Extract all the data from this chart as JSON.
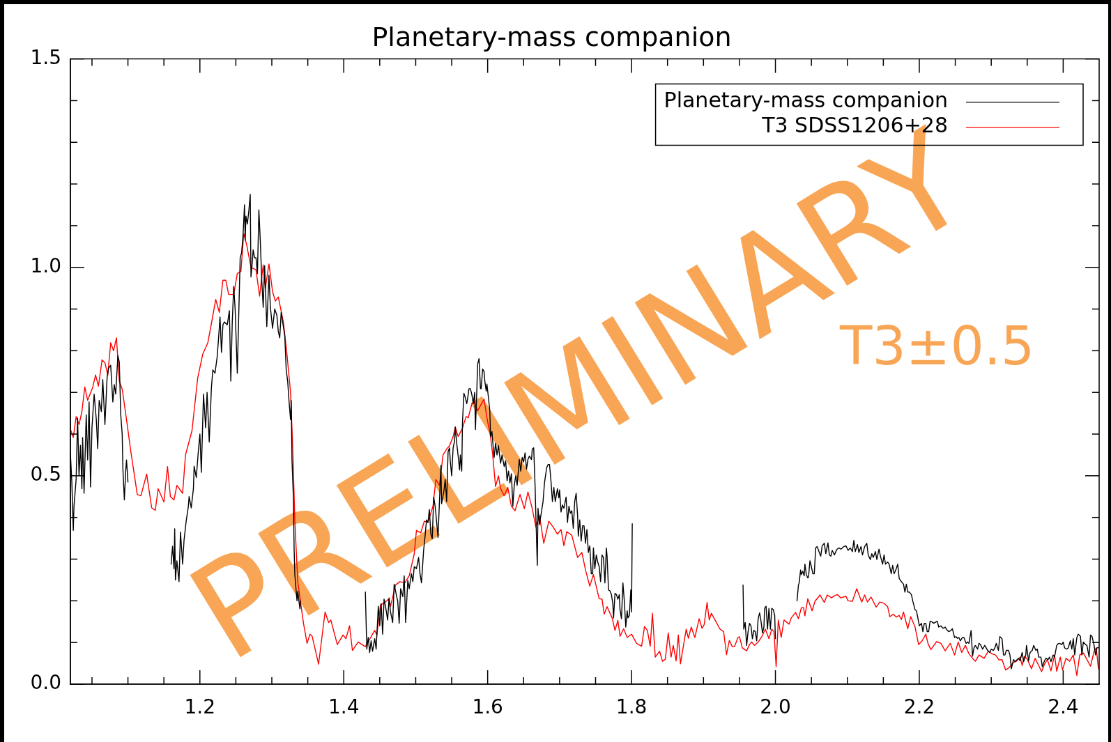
{
  "chart_data": {
    "type": "line",
    "title": "Planetary-mass companion",
    "xlim": [
      1.02,
      2.45
    ],
    "xticks": [
      {
        "value": 1.05,
        "label": null
      },
      {
        "value": 1.1,
        "label": null
      },
      {
        "value": 1.15,
        "label": null
      },
      1.2,
      {
        "value": 1.25,
        "label": null
      },
      {
        "value": 1.3,
        "label": null
      },
      {
        "value": 1.35,
        "label": null
      },
      1.4,
      {
        "value": 1.45,
        "label": null
      },
      {
        "value": 1.5,
        "label": null
      },
      {
        "value": 1.55,
        "label": null
      },
      1.6,
      {
        "value": 1.65,
        "label": null
      },
      {
        "value": 1.7,
        "label": null
      },
      {
        "value": 1.75,
        "label": null
      },
      1.8,
      {
        "value": 1.85,
        "label": null
      },
      {
        "value": 1.9,
        "label": null
      },
      {
        "value": 1.95,
        "label": null
      },
      {
        "value": 2.0,
        "label": "2.0"
      },
      {
        "value": 2.05,
        "label": null
      },
      {
        "value": 2.1,
        "label": null
      },
      {
        "value": 2.15,
        "label": null
      },
      2.2,
      {
        "value": 2.25,
        "label": null
      },
      {
        "value": 2.3,
        "label": null
      },
      {
        "value": 2.35,
        "label": null
      },
      2.4
    ],
    "ylim": [
      0,
      1.5
    ],
    "yticks": [
      {
        "value": 0,
        "label": "0.0"
      },
      {
        "value": 0.1,
        "label": null
      },
      {
        "value": 0.2,
        "label": null
      },
      {
        "value": 0.3,
        "label": null
      },
      {
        "value": 0.4,
        "label": null
      },
      0.5,
      {
        "value": 0.6,
        "label": null
      },
      {
        "value": 0.7,
        "label": null
      },
      {
        "value": 0.8,
        "label": null
      },
      {
        "value": 0.9,
        "label": null
      },
      {
        "value": 1,
        "label": "1.0"
      },
      {
        "value": 1.1,
        "label": null
      },
      {
        "value": 1.2,
        "label": null
      },
      {
        "value": 1.3,
        "label": null
      },
      {
        "value": 1.4,
        "label": null
      },
      1.5
    ],
    "legend": "top right",
    "annotations": [
      "PRELIMINARY",
      "T3±0.5"
    ],
    "series": [
      {
        "name": "Planetary-mass companion",
        "color": "#000000",
        "x": [
          1.02,
          1.022,
          1.024,
          1.025,
          1.028,
          1.03,
          1.032,
          1.034,
          1.036,
          1.037,
          1.039,
          1.042,
          1.044,
          1.046,
          1.048,
          1.05,
          1.053,
          1.056,
          1.058,
          1.06,
          1.063,
          1.065,
          1.068,
          1.071,
          1.073,
          1.076,
          1.079,
          1.081,
          1.083,
          1.086,
          1.088,
          1.09,
          1.092,
          1.093,
          1.095,
          1.097,
          1.098,
          1.1,
          1.13,
          1.16,
          1.162,
          1.164,
          1.165,
          1.166,
          1.168,
          1.171,
          1.173,
          1.176,
          1.178,
          1.181,
          1.184,
          1.185,
          1.188,
          1.191,
          1.192,
          1.195,
          1.198,
          1.2,
          1.202,
          1.205,
          1.208,
          1.21,
          1.213,
          1.216,
          1.218,
          1.221,
          1.224,
          1.226,
          1.228,
          1.23,
          1.232,
          1.234,
          1.238,
          1.241,
          1.243,
          1.245,
          1.247,
          1.249,
          1.252,
          1.254,
          1.256,
          1.258,
          1.26,
          1.262,
          1.263,
          1.264,
          1.266,
          1.268,
          1.27,
          1.271,
          1.273,
          1.274,
          1.276,
          1.278,
          1.28,
          1.282,
          1.284,
          1.286,
          1.288,
          1.29,
          1.293,
          1.296,
          1.298,
          1.301,
          1.304,
          1.307,
          1.309,
          1.311,
          1.313,
          1.316,
          1.318,
          1.32,
          1.322,
          1.324,
          1.326,
          1.327,
          1.328,
          1.33,
          1.331,
          1.332,
          1.335,
          1.336,
          1.339,
          1.34,
          1.385,
          1.43,
          1.432,
          1.434,
          1.436,
          1.438,
          1.44,
          1.443,
          1.445,
          1.448,
          1.45,
          1.452,
          1.454,
          1.456,
          1.458,
          1.461,
          1.463,
          1.465,
          1.468,
          1.47,
          1.473,
          1.475,
          1.477,
          1.479,
          1.482,
          1.484,
          1.486,
          1.489,
          1.491,
          1.494,
          1.496,
          1.498,
          1.501,
          1.504,
          1.506,
          1.508,
          1.511,
          1.513,
          1.515,
          1.517,
          1.519,
          1.521,
          1.523,
          1.525,
          1.527,
          1.528,
          1.531,
          1.533,
          1.535,
          1.536,
          1.539,
          1.541,
          1.543,
          1.545,
          1.547,
          1.548,
          1.55,
          1.552,
          1.554,
          1.555,
          1.557,
          1.559,
          1.561,
          1.562,
          1.564,
          1.565,
          1.567,
          1.569,
          1.571,
          1.573,
          1.574,
          1.576,
          1.578,
          1.58,
          1.582,
          1.583,
          1.585,
          1.586,
          1.588,
          1.59,
          1.591,
          1.593,
          1.595,
          1.596,
          1.598,
          1.599,
          1.601,
          1.603,
          1.604,
          1.606,
          1.607,
          1.609,
          1.611,
          1.613,
          1.615,
          1.618,
          1.62,
          1.623,
          1.625,
          1.627,
          1.629,
          1.631,
          1.633,
          1.635,
          1.637,
          1.639,
          1.641,
          1.644,
          1.646,
          1.648,
          1.65,
          1.652,
          1.654,
          1.656,
          1.658,
          1.661,
          1.662,
          1.664,
          1.666,
          1.667,
          1.669,
          1.67,
          1.672,
          1.675,
          1.677,
          1.679,
          1.682,
          1.684,
          1.686,
          1.688,
          1.69,
          1.692,
          1.694,
          1.697,
          1.699,
          1.7,
          1.702,
          1.704,
          1.706,
          1.709,
          1.711,
          1.713,
          1.715,
          1.717,
          1.719,
          1.721,
          1.723,
          1.725,
          1.726,
          1.728,
          1.73,
          1.732,
          1.734,
          1.736,
          1.738,
          1.74,
          1.742,
          1.744,
          1.746,
          1.747,
          1.749,
          1.751,
          1.753,
          1.755,
          1.757,
          1.759,
          1.761,
          1.763,
          1.765,
          1.766,
          1.768,
          1.77,
          1.772,
          1.774,
          1.775,
          1.777,
          1.779,
          1.781,
          1.783,
          1.784,
          1.786,
          1.788,
          1.79,
          1.792,
          1.794,
          1.795,
          1.797,
          1.799,
          1.8,
          1.801,
          1.88,
          1.955,
          1.956,
          1.958,
          1.96,
          1.962,
          1.964,
          1.966,
          1.968,
          1.97,
          1.972,
          1.974,
          1.976,
          1.978,
          1.98,
          1.982,
          1.984,
          1.985,
          1.987,
          1.989,
          1.991,
          1.993,
          1.995,
          1.997,
          1.999,
          2.0,
          2.015,
          2.03,
          2.032,
          2.033,
          2.035,
          2.036,
          2.038,
          2.04,
          2.041,
          2.043,
          2.045,
          2.046,
          2.048,
          2.05,
          2.052,
          2.054,
          2.056,
          2.058,
          2.061,
          2.063,
          2.065,
          2.068,
          2.07,
          2.073,
          2.075,
          2.077,
          2.079,
          2.082,
          2.085,
          2.088,
          2.091,
          2.095,
          2.098,
          2.101,
          2.104,
          2.107,
          2.109,
          2.111,
          2.114,
          2.116,
          2.119,
          2.121,
          2.124,
          2.127,
          2.129,
          2.132,
          2.134,
          2.136,
          2.139,
          2.141,
          2.144,
          2.146,
          2.149,
          2.151,
          2.153,
          2.156,
          2.158,
          2.161,
          2.163,
          2.165,
          2.168,
          2.17,
          2.172,
          2.175,
          2.178,
          2.18,
          2.182,
          2.184,
          2.186,
          2.189,
          2.191,
          2.194,
          2.196,
          2.198,
          2.2,
          2.203,
          2.205,
          2.207,
          2.209,
          2.211,
          2.213,
          2.215,
          2.218,
          2.22,
          2.222,
          2.225,
          2.227,
          2.23,
          2.233,
          2.236,
          2.239,
          2.241,
          2.244,
          2.246,
          2.249,
          2.251,
          2.253,
          2.255,
          2.257,
          2.26,
          2.262,
          2.265,
          2.267,
          2.269,
          2.272,
          2.274,
          2.276,
          2.278,
          2.281,
          2.283,
          2.285,
          2.288,
          2.291,
          2.293,
          2.295,
          2.298,
          2.3,
          2.303,
          2.305,
          2.307,
          2.31,
          2.312,
          2.315,
          2.317,
          2.319,
          2.321,
          2.324,
          2.326,
          2.328,
          2.331,
          2.333,
          2.336,
          2.338,
          2.34,
          2.343,
          2.345,
          2.348,
          2.349,
          2.352,
          2.354,
          2.357,
          2.359,
          2.362,
          2.364,
          2.366,
          2.369,
          2.371,
          2.374,
          2.376,
          2.379,
          2.381,
          2.383,
          2.386,
          2.388,
          2.391,
          2.393,
          2.395,
          2.398,
          2.4,
          2.402,
          2.405,
          2.407,
          2.41,
          2.412,
          2.414,
          2.416,
          2.419,
          2.421,
          2.424,
          2.426,
          2.428,
          2.431,
          2.433,
          2.436,
          2.438,
          2.44,
          2.443,
          2.445,
          2.447,
          2.449
        ],
        "values": [
          0.554,
          0.485,
          0.369,
          0.427,
          0.492,
          0.638,
          0.5,
          0.573,
          0.469,
          0.592,
          0.458,
          0.646,
          0.538,
          0.677,
          0.473,
          0.615,
          0.696,
          0.635,
          0.565,
          0.681,
          0.654,
          0.731,
          0.623,
          0.735,
          0.758,
          0.765,
          0.677,
          0.719,
          0.696,
          0.788,
          0.773,
          0.646,
          0.6,
          0.515,
          0.442,
          0.515,
          0.538,
          0.485,
          null,
          0.288,
          0.331,
          0.277,
          0.373,
          0.25,
          0.296,
          0.246,
          0.365,
          0.288,
          0.346,
          0.392,
          0.427,
          0.45,
          0.423,
          0.469,
          0.523,
          0.496,
          0.562,
          0.6,
          0.508,
          0.696,
          0.615,
          0.7,
          0.581,
          0.711,
          0.754,
          0.746,
          0.785,
          0.831,
          0.881,
          0.796,
          0.862,
          0.869,
          0.862,
          0.896,
          0.727,
          0.869,
          0.954,
          0.9,
          0.746,
          0.885,
          1.023,
          1.035,
          1.077,
          1.15,
          1.065,
          1.123,
          1.104,
          1.135,
          1.175,
          0.977,
          1.015,
          1.042,
          1.023,
          1.023,
          0.985,
          1.138,
          1.062,
          0.969,
          0.904,
          1.004,
          0.858,
          0.981,
          0.904,
          0.854,
          0.9,
          0.885,
          0.846,
          0.831,
          0.892,
          0.858,
          0.835,
          0.754,
          0.727,
          0.677,
          0.635,
          0.681,
          0.538,
          0.446,
          0.323,
          0.262,
          0.2,
          0.223,
          0.181,
          0.2,
          null,
          0.221,
          0.084,
          0.112,
          0.076,
          0.104,
          0.079,
          0.109,
          0.084,
          0.187,
          0.14,
          0.193,
          0.12,
          0.204,
          0.187,
          0.154,
          0.207,
          0.173,
          0.148,
          0.24,
          0.215,
          0.199,
          0.146,
          0.229,
          0.21,
          0.26,
          0.148,
          0.249,
          0.229,
          0.265,
          0.246,
          0.282,
          0.277,
          0.304,
          0.265,
          0.243,
          0.321,
          0.355,
          0.394,
          0.388,
          0.419,
          0.36,
          0.349,
          0.449,
          0.427,
          0.41,
          0.352,
          0.438,
          0.525,
          0.433,
          0.461,
          0.491,
          0.438,
          0.558,
          0.567,
          0.536,
          0.5,
          0.567,
          0.583,
          0.617,
          0.578,
          0.547,
          0.514,
          0.55,
          0.511,
          0.628,
          0.698,
          0.687,
          0.673,
          0.695,
          0.709,
          0.709,
          0.695,
          0.673,
          0.7,
          0.611,
          0.706,
          0.767,
          0.781,
          0.709,
          0.709,
          0.756,
          0.75,
          0.728,
          0.703,
          0.72,
          0.689,
          0.656,
          0.594,
          0.606,
          0.583,
          0.544,
          0.578,
          0.55,
          0.572,
          0.53,
          0.55,
          0.522,
          0.536,
          0.488,
          0.511,
          0.483,
          0.505,
          0.427,
          0.477,
          0.5,
          0.477,
          0.539,
          0.511,
          0.544,
          0.533,
          0.555,
          0.516,
          0.539,
          0.547,
          0.539,
          0.564,
          0.567,
          0.472,
          0.405,
          0.285,
          0.422,
          0.383,
          0.416,
          0.438,
          0.483,
          0.519,
          0.527,
          0.527,
          0.488,
          0.438,
          0.472,
          0.438,
          0.469,
          0.447,
          0.466,
          0.413,
          0.43,
          0.422,
          0.449,
          0.388,
          0.427,
          0.41,
          0.416,
          0.374,
          0.438,
          0.458,
          0.405,
          0.355,
          0.394,
          0.343,
          0.38,
          0.38,
          0.338,
          0.371,
          0.316,
          0.332,
          0.265,
          0.265,
          0.327,
          0.277,
          0.31,
          0.293,
          0.282,
          0.246,
          0.31,
          0.304,
          0.243,
          0.327,
          0.307,
          0.226,
          0.224,
          0.215,
          0.193,
          0.159,
          0.218,
          0.215,
          0.204,
          0.215,
          0.179,
          0.157,
          0.243,
          0.199,
          0.137,
          0.176,
          0.159,
          0.165,
          0.226,
          0.173,
          0.385,
          null,
          0.238,
          0.132,
          0.148,
          0.093,
          0.126,
          0.146,
          0.14,
          0.109,
          0.129,
          0.126,
          0.104,
          0.157,
          0.171,
          0.151,
          0.123,
          0.137,
          0.182,
          0.187,
          0.132,
          0.182,
          0.132,
          0.182,
          0.179,
          0.165,
          0.109,
          null,
          0.2,
          0.238,
          0.243,
          0.274,
          0.263,
          0.271,
          0.26,
          0.288,
          0.263,
          0.255,
          0.257,
          0.296,
          0.282,
          0.265,
          0.265,
          0.327,
          0.33,
          0.316,
          0.307,
          0.332,
          0.338,
          0.313,
          0.339,
          0.31,
          0.307,
          0.321,
          0.31,
          0.322,
          0.327,
          0.324,
          0.33,
          0.332,
          0.321,
          0.327,
          0.318,
          0.345,
          0.318,
          0.335,
          0.316,
          0.33,
          0.31,
          0.33,
          0.338,
          0.31,
          0.299,
          0.313,
          0.304,
          0.318,
          0.299,
          0.324,
          0.307,
          0.288,
          0.31,
          0.288,
          0.293,
          0.288,
          0.265,
          0.285,
          0.265,
          0.277,
          0.288,
          0.254,
          0.246,
          0.24,
          0.221,
          0.24,
          0.221,
          0.221,
          0.215,
          0.199,
          0.179,
          0.176,
          0.159,
          0.14,
          0.146,
          0.126,
          0.146,
          0.146,
          0.126,
          0.126,
          0.151,
          0.149,
          0.146,
          0.148,
          0.151,
          0.137,
          0.14,
          0.134,
          0.137,
          0.129,
          0.126,
          0.129,
          0.133,
          0.112,
          0.114,
          0.11,
          0.112,
          0.104,
          0.112,
          0.112,
          0.098,
          0.101,
          0.098,
          0.129,
          0.067,
          0.087,
          0.093,
          0.084,
          0.098,
          0.095,
          0.084,
          0.093,
          0.087,
          0.081,
          0.076,
          0.084,
          0.081,
          0.087,
          0.098,
          0.081,
          0.114,
          0.109,
          0.07,
          0.07,
          0.081,
          0.081,
          0.07,
          0.037,
          0.059,
          0.054,
          0.059,
          0.062,
          0.056,
          0.076,
          0.054,
          0.07,
          0.093,
          0.056,
          0.076,
          0.081,
          0.093,
          0.081,
          0.084,
          0.065,
          0.065,
          0.042,
          0.056,
          0.062,
          0.059,
          0.065,
          0.054,
          0.07,
          0.065,
          0.093,
          0.097,
          0.098,
          0.095,
          0.101,
          0.087,
          0.084,
          0.087,
          0.104,
          0.084,
          0.109,
          0.07,
          0.112,
          0.12,
          0.115,
          0.07,
          0.101,
          0.095,
          0.093,
          0.065,
          0.118,
          0.115,
          0.093,
          0.07,
          0.087,
          0.088
        ]
      },
      {
        "name": "T3 SDSS1206+28",
        "color": "#ff0000",
        "x": [
          1.02,
          1.024,
          1.028,
          1.032,
          1.036,
          1.04,
          1.044,
          1.051,
          1.055,
          1.059,
          1.064,
          1.068,
          1.072,
          1.076,
          1.08,
          1.084,
          1.088,
          1.092,
          1.098,
          1.104,
          1.113,
          1.118,
          1.126,
          1.133,
          1.138,
          1.142,
          1.15,
          1.155,
          1.159,
          1.164,
          1.168,
          1.176,
          1.18,
          1.189,
          1.197,
          1.204,
          1.211,
          1.216,
          1.222,
          1.227,
          1.232,
          1.236,
          1.24,
          1.247,
          1.252,
          1.257,
          1.261,
          1.265,
          1.271,
          1.278,
          1.283,
          1.288,
          1.291,
          1.296,
          1.301,
          1.305,
          1.309,
          1.316,
          1.321,
          1.326,
          1.329,
          1.332,
          1.336,
          1.344,
          1.349,
          1.353,
          1.356,
          1.365,
          1.374,
          1.379,
          1.382,
          1.391,
          1.399,
          1.403,
          1.408,
          1.412,
          1.42,
          1.43,
          1.443,
          1.446,
          1.451,
          1.457,
          1.462,
          1.465,
          1.472,
          1.478,
          1.485,
          1.491,
          1.498,
          1.501,
          1.507,
          1.512,
          1.517,
          1.524,
          1.528,
          1.533,
          1.538,
          1.543,
          1.547,
          1.552,
          1.555,
          1.559,
          1.565,
          1.57,
          1.573,
          1.578,
          1.581,
          1.586,
          1.595,
          1.599,
          1.604,
          1.607,
          1.611,
          1.615,
          1.618,
          1.623,
          1.628,
          1.633,
          1.638,
          1.645,
          1.651,
          1.656,
          1.662,
          1.667,
          1.672,
          1.678,
          1.685,
          1.691,
          1.697,
          1.702,
          1.706,
          1.71,
          1.717,
          1.725,
          1.731,
          1.736,
          1.742,
          1.747,
          1.755,
          1.759,
          1.762,
          1.766,
          1.773,
          1.777,
          1.781,
          1.784,
          1.789,
          1.794,
          1.8,
          1.807,
          1.814,
          1.818,
          1.822,
          1.826,
          1.829,
          1.833,
          1.839,
          1.843,
          1.847,
          1.851,
          1.855,
          1.858,
          1.862,
          1.865,
          1.868,
          1.876,
          1.879,
          1.883,
          1.888,
          1.894,
          1.898,
          1.901,
          1.905,
          1.908,
          1.911,
          1.917,
          1.923,
          1.928,
          1.932,
          1.936,
          1.94,
          1.943,
          1.948,
          1.95,
          1.954,
          1.96,
          1.964,
          1.967,
          1.971,
          1.976,
          1.981,
          1.986,
          1.991,
          1.995,
          1.998,
          2.001,
          2.004,
          2.008,
          2.012,
          2.019,
          2.022,
          2.028,
          2.032,
          2.036,
          2.039,
          2.041,
          2.045,
          2.051,
          2.055,
          2.062,
          2.068,
          2.072,
          2.078,
          2.082,
          2.086,
          2.091,
          2.098,
          2.101,
          2.107,
          2.113,
          2.12,
          2.124,
          2.128,
          2.133,
          2.14,
          2.145,
          2.151,
          2.156,
          2.159,
          2.164,
          2.168,
          2.172,
          2.175,
          2.178,
          2.184,
          2.188,
          2.194,
          2.199,
          2.204,
          2.209,
          2.212,
          2.216,
          2.219,
          2.224,
          2.23,
          2.236,
          2.243,
          2.249,
          2.254,
          2.259,
          2.264,
          2.269,
          2.274,
          2.278,
          2.283,
          2.29,
          2.296,
          2.301,
          2.306,
          2.311,
          2.315,
          2.32,
          2.325,
          2.33,
          2.335,
          2.34,
          2.343,
          2.346,
          2.35,
          2.356,
          2.361,
          2.365,
          2.37,
          2.374,
          2.378,
          2.383,
          2.388,
          2.391,
          2.396,
          2.399,
          2.404,
          2.409,
          2.414,
          2.419,
          2.423,
          2.428,
          2.433,
          2.438,
          2.443,
          2.446,
          2.449
        ],
        "values": [
          0.612,
          0.592,
          0.642,
          0.623,
          0.654,
          0.713,
          0.681,
          0.712,
          0.742,
          0.715,
          0.778,
          0.771,
          0.742,
          0.819,
          0.8,
          0.831,
          0.727,
          0.708,
          0.635,
          0.558,
          0.455,
          0.452,
          0.504,
          0.423,
          0.417,
          0.469,
          0.437,
          0.522,
          0.45,
          0.442,
          0.477,
          0.458,
          0.55,
          0.608,
          0.735,
          0.792,
          0.819,
          0.865,
          0.923,
          0.892,
          0.969,
          0.969,
          0.935,
          0.935,
          0.985,
          0.99,
          1.081,
          1.054,
          1.0,
          0.994,
          0.931,
          1.006,
          0.95,
          1.008,
          0.942,
          0.919,
          0.929,
          0.869,
          0.792,
          0.7,
          0.569,
          0.392,
          0.246,
          0.146,
          0.098,
          0.12,
          0.115,
          0.048,
          0.173,
          0.148,
          0.154,
          0.095,
          0.118,
          0.109,
          0.14,
          0.081,
          0.101,
          0.09,
          0.129,
          0.118,
          0.19,
          0.196,
          0.204,
          0.187,
          0.238,
          0.246,
          0.243,
          0.26,
          0.313,
          0.369,
          0.363,
          0.391,
          0.388,
          0.427,
          0.491,
          0.477,
          0.55,
          0.564,
          0.572,
          0.594,
          0.617,
          0.594,
          0.614,
          0.642,
          0.639,
          0.672,
          0.678,
          0.656,
          0.684,
          0.639,
          0.594,
          0.55,
          0.474,
          0.5,
          0.469,
          0.452,
          0.472,
          0.427,
          0.416,
          0.455,
          0.421,
          0.461,
          0.421,
          0.377,
          0.405,
          0.338,
          0.391,
          0.377,
          0.36,
          0.371,
          0.332,
          0.366,
          0.357,
          0.304,
          0.316,
          0.274,
          0.235,
          0.263,
          0.205,
          0.204,
          0.168,
          0.186,
          0.159,
          0.129,
          0.153,
          0.115,
          0.133,
          0.112,
          0.12,
          0.098,
          0.091,
          0.138,
          0.129,
          0.091,
          0.17,
          0.065,
          0.079,
          0.055,
          0.06,
          0.123,
          0.065,
          0.093,
          0.056,
          0.118,
          0.049,
          0.132,
          0.11,
          0.137,
          0.112,
          0.157,
          0.134,
          0.143,
          0.196,
          0.154,
          0.17,
          0.151,
          0.132,
          0.126,
          0.071,
          0.105,
          0.09,
          0.09,
          0.112,
          0.114,
          0.087,
          0.08,
          0.095,
          0.101,
          0.093,
          0.101,
          0.114,
          0.132,
          0.109,
          0.132,
          0.126,
          0.042,
          0.154,
          0.112,
          0.154,
          0.144,
          0.159,
          0.172,
          0.157,
          0.183,
          0.184,
          0.164,
          0.205,
          0.176,
          0.199,
          0.214,
          0.196,
          0.214,
          0.207,
          0.212,
          0.215,
          0.207,
          0.211,
          0.2,
          0.199,
          0.229,
          0.197,
          0.214,
          0.197,
          0.209,
          0.185,
          0.197,
          0.194,
          0.186,
          0.162,
          0.168,
          0.161,
          0.165,
          0.155,
          0.173,
          0.133,
          0.162,
          0.138,
          0.095,
          0.104,
          0.12,
          0.098,
          0.083,
          0.09,
          0.102,
          0.098,
          0.08,
          0.098,
          0.07,
          0.101,
          0.076,
          0.093,
          0.073,
          0.062,
          0.055,
          0.07,
          0.062,
          0.079,
          0.073,
          0.07,
          0.058,
          0.059,
          0.034,
          0.04,
          0.051,
          0.055,
          0.065,
          0.045,
          0.067,
          0.06,
          0.037,
          0.062,
          0.048,
          0.03,
          0.048,
          0.059,
          0.032,
          0.07,
          0.031,
          0.065,
          0.034,
          0.062,
          0.055,
          0.07,
          0.021,
          0.07,
          0.075,
          0.059,
          0.043,
          0.079,
          0.087,
          0.037
        ]
      }
    ]
  }
}
